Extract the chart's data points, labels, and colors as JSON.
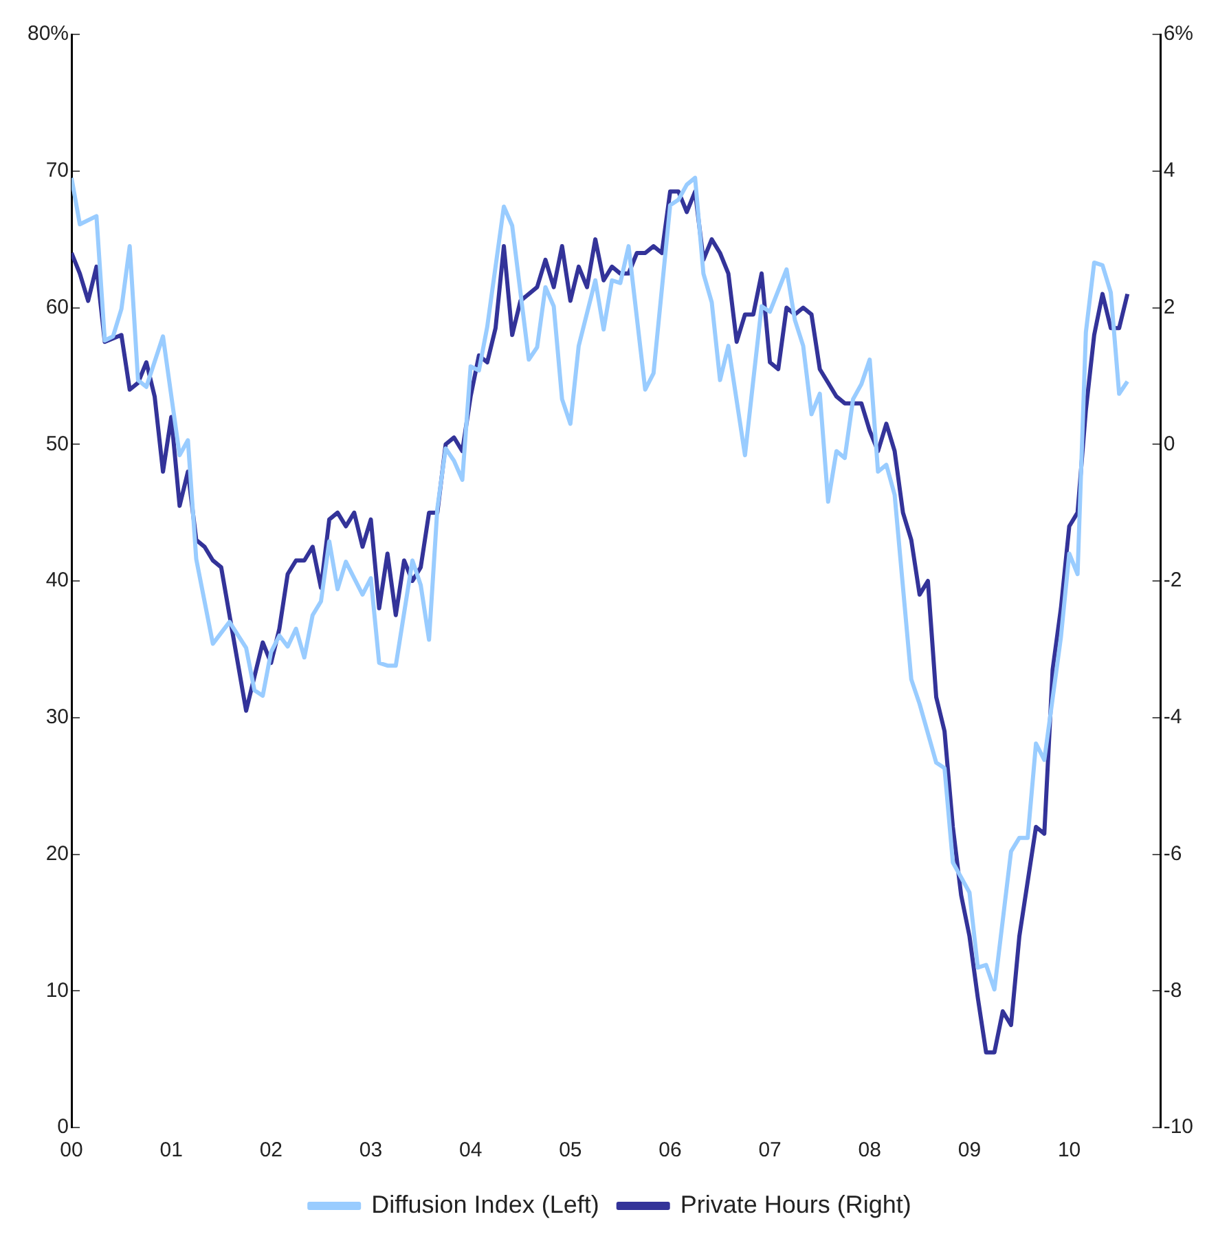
{
  "chart_data": {
    "type": "line",
    "legend": "bottom",
    "marker": "none",
    "grid": false,
    "xlim": [
      "2000-01",
      "2010-12"
    ],
    "xticks": [
      {
        "value": "2000",
        "label": "00"
      },
      {
        "value": "2001",
        "label": "01"
      },
      {
        "value": "2002",
        "label": "02"
      },
      {
        "value": "2003",
        "label": "03"
      },
      {
        "value": "2004",
        "label": "04"
      },
      {
        "value": "2005",
        "label": "05"
      },
      {
        "value": "2006",
        "label": "06"
      },
      {
        "value": "2007",
        "label": "07"
      },
      {
        "value": "2008",
        "label": "08"
      },
      {
        "value": "2009",
        "label": "09"
      },
      {
        "value": "2010",
        "label": "10"
      }
    ],
    "ylim": [
      0,
      80
    ],
    "yticks": [
      0,
      10,
      20,
      30,
      40,
      50,
      60,
      70,
      {
        "value": 80,
        "label": "80%"
      }
    ],
    "y2lim": [
      -10,
      6
    ],
    "y2ticks": [
      -10,
      -8,
      -6,
      -4,
      -2,
      0,
      2,
      4,
      {
        "value": 6,
        "label": "6%"
      }
    ],
    "series": [
      {
        "name": "Diffusion Index (Left)",
        "color": "#99ccff",
        "x": [
          "2000-01",
          "2000-02",
          "2000-04",
          "2000-05",
          "2000-06",
          "2000-07",
          "2000-08",
          "2000-09",
          "2000-10",
          "2000-12",
          "2001-02",
          "2001-03",
          "2001-04",
          "2001-06",
          "2001-08",
          "2001-10",
          "2001-11",
          "2001-12",
          "2002-01",
          "2002-02",
          "2002-03",
          "2002-04",
          "2002-05",
          "2002-06",
          "2002-07",
          "2002-08",
          "2002-09",
          "2002-10",
          "2002-12",
          "2003-01",
          "2003-02",
          "2003-03",
          "2003-04",
          "2003-06",
          "2003-07",
          "2003-08",
          "2003-09",
          "2003-10",
          "2003-11",
          "2003-12",
          "2004-01",
          "2004-02",
          "2004-03",
          "2004-05",
          "2004-06",
          "2004-08",
          "2004-09",
          "2004-10",
          "2004-11",
          "2004-12",
          "2005-01",
          "2005-02",
          "2005-04",
          "2005-05",
          "2005-06",
          "2005-07",
          "2005-08",
          "2005-10",
          "2005-11",
          "2006-01",
          "2006-02",
          "2006-03",
          "2006-04",
          "2006-05",
          "2006-06",
          "2006-07",
          "2006-08",
          "2006-10",
          "2006-11",
          "2006-12",
          "2007-01",
          "2007-03",
          "2007-04",
          "2007-05",
          "2007-06",
          "2007-07",
          "2007-08",
          "2007-09",
          "2007-10",
          "2007-11",
          "2007-12",
          "2008-01",
          "2008-02",
          "2008-03",
          "2008-04",
          "2008-06",
          "2008-07",
          "2008-09",
          "2008-10",
          "2008-11",
          "2009-01",
          "2009-02",
          "2009-03",
          "2009-04",
          "2009-06",
          "2009-07",
          "2009-08",
          "2009-09",
          "2009-10",
          "2009-12",
          "2010-01",
          "2010-02",
          "2010-03",
          "2010-04",
          "2010-05",
          "2010-06",
          "2010-07",
          "2010-08"
        ],
        "values": [
          69.5,
          66.1,
          66.7,
          57.6,
          57.9,
          59.9,
          64.5,
          54.7,
          54.2,
          57.9,
          49.2,
          50.3,
          41.6,
          35.4,
          37.0,
          35.1,
          32.0,
          31.6,
          34.8,
          36.0,
          35.2,
          36.5,
          34.4,
          37.5,
          38.5,
          42.9,
          39.4,
          41.4,
          39.0,
          40.2,
          34.0,
          33.8,
          33.8,
          41.5,
          39.7,
          35.7,
          45.3,
          49.7,
          48.8,
          47.4,
          55.7,
          55.4,
          58.6,
          67.4,
          66.0,
          56.2,
          57.1,
          61.5,
          60.1,
          53.3,
          51.5,
          57.2,
          62.0,
          58.4,
          62.0,
          61.8,
          64.5,
          54.0,
          55.2,
          67.5,
          67.9,
          69.0,
          69.5,
          62.5,
          60.4,
          54.7,
          57.2,
          49.2,
          54.7,
          60.1,
          59.7,
          62.8,
          59.1,
          57.2,
          52.2,
          53.7,
          45.8,
          49.5,
          49.0,
          53.3,
          54.4,
          56.2,
          48.0,
          48.5,
          46.3,
          32.8,
          31.0,
          26.7,
          26.3,
          19.4,
          17.2,
          11.7,
          11.9,
          10.1,
          20.2,
          21.2,
          21.2,
          28.1,
          26.9,
          35.9,
          42.0,
          40.5,
          58.2,
          63.3,
          63.1,
          61.1,
          53.7,
          54.6
        ]
      },
      {
        "name": "Private Hours (Right)",
        "color": "#333399",
        "axis": "y2",
        "x": [
          "2000-01",
          "2000-02",
          "2000-03",
          "2000-04",
          "2000-05",
          "2000-07",
          "2000-08",
          "2000-09",
          "2000-10",
          "2000-11",
          "2000-12",
          "2001-01",
          "2001-02",
          "2001-03",
          "2001-04",
          "2001-05",
          "2001-06",
          "2001-07",
          "2001-10",
          "2001-12",
          "2002-01",
          "2002-02",
          "2002-03",
          "2002-04",
          "2002-05",
          "2002-06",
          "2002-07",
          "2002-08",
          "2002-09",
          "2002-10",
          "2002-11",
          "2002-12",
          "2003-01",
          "2003-02",
          "2003-03",
          "2003-04",
          "2003-05",
          "2003-06",
          "2003-07",
          "2003-08",
          "2003-09",
          "2003-10",
          "2003-11",
          "2003-12",
          "2004-01",
          "2004-02",
          "2004-03",
          "2004-04",
          "2004-05",
          "2004-06",
          "2004-07",
          "2004-08",
          "2004-09",
          "2004-10",
          "2004-11",
          "2004-12",
          "2005-01",
          "2005-02",
          "2005-03",
          "2005-04",
          "2005-05",
          "2005-06",
          "2005-07",
          "2005-08",
          "2005-09",
          "2005-10",
          "2005-11",
          "2005-12",
          "2006-01",
          "2006-02",
          "2006-03",
          "2006-04",
          "2006-05",
          "2006-06",
          "2006-07",
          "2006-08",
          "2006-09",
          "2006-10",
          "2006-11",
          "2006-12",
          "2007-01",
          "2007-02",
          "2007-03",
          "2007-04",
          "2007-05",
          "2007-06",
          "2007-07",
          "2007-08",
          "2007-09",
          "2007-10",
          "2007-12",
          "2008-01",
          "2008-02",
          "2008-03",
          "2008-04",
          "2008-05",
          "2008-06",
          "2008-07",
          "2008-08",
          "2008-09",
          "2008-10",
          "2008-11",
          "2008-12",
          "2009-01",
          "2009-02",
          "2009-03",
          "2009-04",
          "2009-05",
          "2009-06",
          "2009-07",
          "2009-09",
          "2009-10",
          "2009-11",
          "2009-12",
          "2010-01",
          "2010-02",
          "2010-03",
          "2010-04",
          "2010-05",
          "2010-06",
          "2010-07",
          "2010-08"
        ],
        "values": [
          2.8,
          2.5,
          2.1,
          2.6,
          1.5,
          1.6,
          0.8,
          0.9,
          1.2,
          0.7,
          -0.4,
          0.4,
          -0.9,
          -0.4,
          -1.4,
          -1.5,
          -1.7,
          -1.8,
          -3.9,
          -2.9,
          -3.2,
          -2.7,
          -1.9,
          -1.7,
          -1.7,
          -1.5,
          -2.1,
          -1.1,
          -1.0,
          -1.2,
          -1.0,
          -1.5,
          -1.1,
          -2.4,
          -1.6,
          -2.5,
          -1.7,
          -2.0,
          -1.8,
          -1.0,
          -1.0,
          0.0,
          0.1,
          -0.1,
          0.7,
          1.3,
          1.2,
          1.7,
          2.9,
          1.6,
          2.1,
          2.2,
          2.3,
          2.7,
          2.3,
          2.9,
          2.1,
          2.6,
          2.3,
          3.0,
          2.4,
          2.6,
          2.5,
          2.5,
          2.8,
          2.8,
          2.9,
          2.8,
          3.7,
          3.7,
          3.4,
          3.7,
          2.7,
          3.0,
          2.8,
          2.5,
          1.5,
          1.9,
          1.9,
          2.5,
          1.2,
          1.1,
          2.0,
          1.9,
          2.0,
          1.9,
          1.1,
          0.9,
          0.7,
          0.6,
          0.6,
          0.2,
          -0.1,
          0.3,
          -0.1,
          -1.0,
          -1.4,
          -2.2,
          -2.0,
          -3.7,
          -4.2,
          -5.6,
          -6.6,
          -7.2,
          -8.1,
          -8.9,
          -8.9,
          -8.3,
          -8.5,
          -7.2,
          -5.6,
          -5.7,
          -3.3,
          -2.4,
          -1.2,
          -1.0,
          0.5,
          1.6,
          2.2,
          1.7,
          1.7,
          2.2
        ]
      }
    ]
  }
}
